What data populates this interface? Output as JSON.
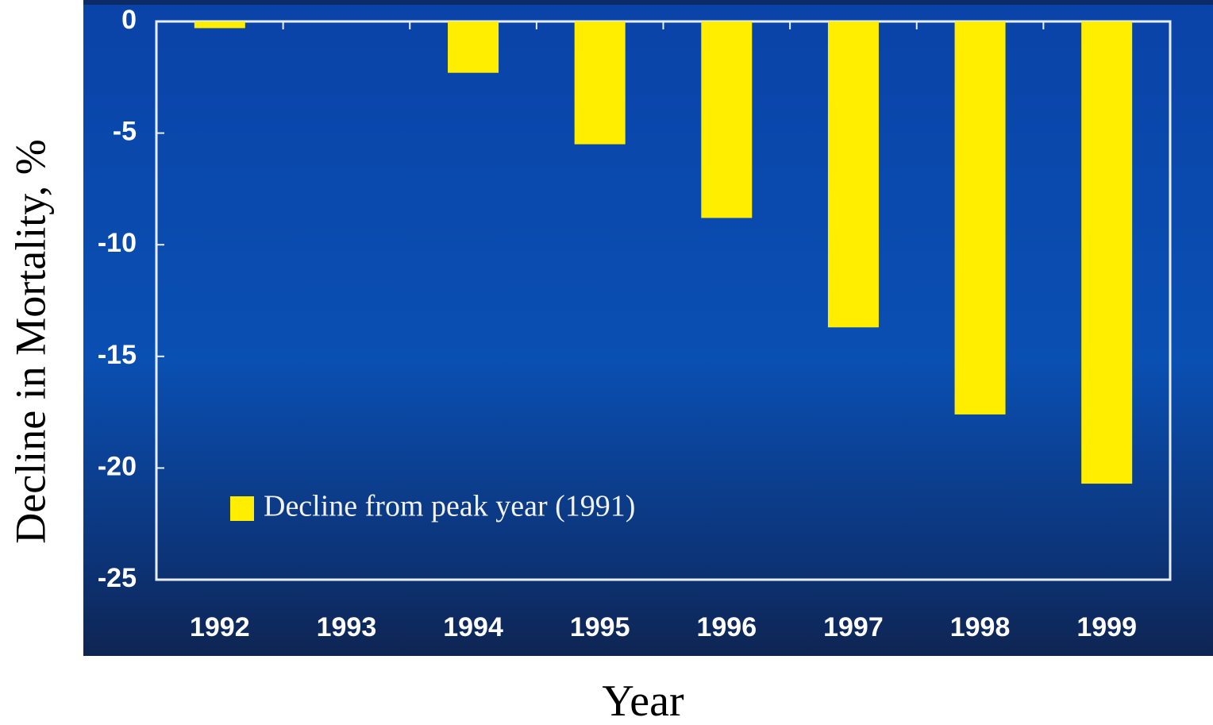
{
  "chart_data": {
    "type": "bar",
    "xlabel": "Year",
    "ylabel": "Decline in Mortality, %",
    "categories": [
      "1992",
      "1993",
      "1994",
      "1995",
      "1996",
      "1997",
      "1998",
      "1999"
    ],
    "series": [
      {
        "name": "Decline from peak year (1991)",
        "color": "#ffee00",
        "values": [
          -0.3,
          0,
          -2.3,
          -5.5,
          -8.8,
          -13.7,
          -17.6,
          -20.7
        ]
      }
    ],
    "ylim": [
      -25,
      0
    ],
    "yticks": [
      -25,
      -20,
      -15,
      -10,
      -5,
      0
    ],
    "legend": "lower left"
  }
}
